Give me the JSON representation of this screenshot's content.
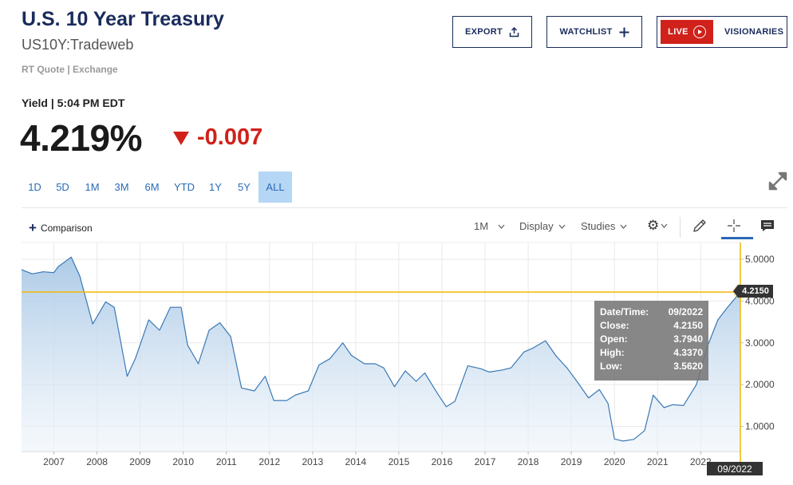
{
  "header": {
    "title": "U.S. 10 Year Treasury",
    "symbol": "US10Y:Tradeweb",
    "quote_source": "RT Quote | Exchange",
    "export_label": "EXPORT",
    "watchlist_label": "WATCHLIST",
    "live_label": "LIVE",
    "visionaries_label": "VISIONARIES"
  },
  "quote": {
    "yield_label": "Yield | 5:04 PM EDT",
    "price": "4.219%",
    "change": "-0.007"
  },
  "ranges": [
    "1D",
    "5D",
    "1M",
    "3M",
    "6M",
    "YTD",
    "1Y",
    "5Y",
    "ALL"
  ],
  "active_range": "ALL",
  "toolbar": {
    "comparison_label": "Comparison",
    "interval_label": "1M",
    "display_label": "Display",
    "studies_label": "Studies"
  },
  "tooltip": {
    "date_label": "Date/Time:",
    "date_value": "09/2022",
    "close_label": "Close:",
    "close_value": "4.2150",
    "open_label": "Open:",
    "open_value": "3.7940",
    "high_label": "High:",
    "high_value": "4.3370",
    "low_label": "Low:",
    "low_value": "3.5620"
  },
  "crosshair": {
    "y_value": "4.2150",
    "x_value": "09/2022"
  },
  "colors": {
    "line": "#3a78b5",
    "crosshair": "#f2b705",
    "down": "#d0211b",
    "brand": "#1a2b5c",
    "active_range": "#b6d6f5"
  },
  "chart_data": {
    "type": "area",
    "title": "",
    "xlabel": "",
    "ylabel": "",
    "x_ticks": [
      "2007",
      "2008",
      "2009",
      "2010",
      "2011",
      "2012",
      "2013",
      "2014",
      "2015",
      "2016",
      "2017",
      "2018",
      "2019",
      "2020",
      "2021",
      "2022"
    ],
    "y_ticks": [
      "1.0000",
      "2.0000",
      "3.0000",
      "4.0000",
      "5.0000"
    ],
    "ylim": [
      0.4,
      5.4
    ],
    "xlim": [
      2006.25,
      2022.92
    ],
    "grid": true,
    "series": [
      {
        "x": [
          2006.25,
          2006.5,
          2006.75,
          2007.0,
          2007.1,
          2007.4,
          2007.6,
          2007.9,
          2008.2,
          2008.4,
          2008.7,
          2008.9,
          2009.2,
          2009.45,
          2009.7,
          2009.95,
          2010.1,
          2010.35,
          2010.6,
          2010.85,
          2011.1,
          2011.35,
          2011.65,
          2011.9,
          2012.1,
          2012.4,
          2012.6,
          2012.9,
          2013.15,
          2013.4,
          2013.7,
          2013.9,
          2014.2,
          2014.45,
          2014.65,
          2014.9,
          2015.15,
          2015.4,
          2015.6,
          2015.9,
          2016.1,
          2016.3,
          2016.6,
          2016.9,
          2017.1,
          2017.4,
          2017.6,
          2017.9,
          2018.1,
          2018.4,
          2018.65,
          2018.9,
          2019.15,
          2019.4,
          2019.65,
          2019.85,
          2020.0,
          2020.2,
          2020.45,
          2020.7,
          2020.9,
          2021.15,
          2021.35,
          2021.6,
          2021.9,
          2022.15,
          2022.4,
          2022.6,
          2022.92
        ],
        "y": [
          4.75,
          4.65,
          4.7,
          4.68,
          4.82,
          5.05,
          4.6,
          3.45,
          3.98,
          3.85,
          2.2,
          2.65,
          3.55,
          3.3,
          3.85,
          3.85,
          2.95,
          2.5,
          3.3,
          3.48,
          3.15,
          1.92,
          1.85,
          2.2,
          1.62,
          1.62,
          1.75,
          1.85,
          2.47,
          2.62,
          3.0,
          2.7,
          2.5,
          2.5,
          2.4,
          1.95,
          2.33,
          2.08,
          2.28,
          1.78,
          1.47,
          1.6,
          2.45,
          2.38,
          2.3,
          2.35,
          2.4,
          2.78,
          2.87,
          3.05,
          2.68,
          2.4,
          2.05,
          1.68,
          1.88,
          1.55,
          0.7,
          0.65,
          0.69,
          0.9,
          1.75,
          1.45,
          1.52,
          1.5,
          2.0,
          2.9,
          3.55,
          3.82,
          4.215
        ]
      }
    ]
  }
}
